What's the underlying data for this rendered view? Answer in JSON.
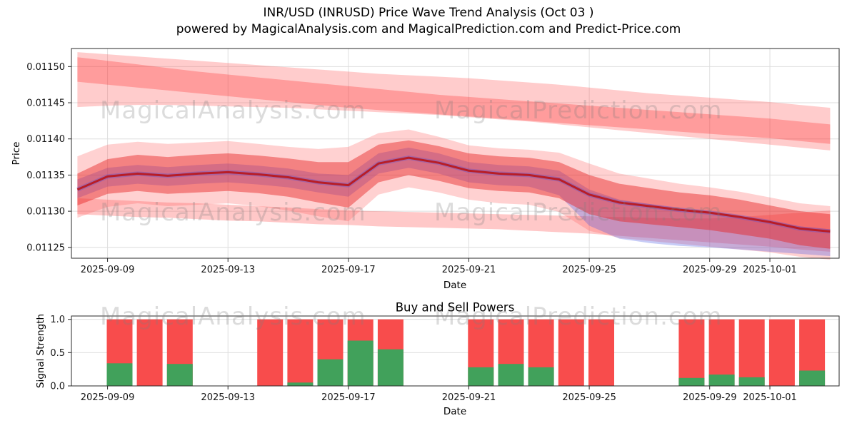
{
  "header": {
    "title": "INR/USD (INRUSD) Price Wave Trend Analysis (Oct 03 )",
    "subtitle": "powered by MagicalAnalysis.com and MagicalPrediction.com and Predict-Price.com"
  },
  "watermarks": {
    "left": "MagicalAnalysis.com",
    "right": "MagicalPrediction.com"
  },
  "chart_data": [
    {
      "ref": "price_chart"
    },
    {
      "ref": "power_chart"
    }
  ],
  "price_chart": {
    "type": "area",
    "xlabel": "Date",
    "ylabel": "Price",
    "ylim": [
      0.011235,
      0.011525
    ],
    "xlim_days": [
      -0.2,
      25.3
    ],
    "grid": true,
    "x_dates": [
      "2025-09-08",
      "2025-09-09",
      "2025-09-10",
      "2025-09-11",
      "2025-09-12",
      "2025-09-13",
      "2025-09-14",
      "2025-09-15",
      "2025-09-16",
      "2025-09-17",
      "2025-09-18",
      "2025-09-19",
      "2025-09-20",
      "2025-09-21",
      "2025-09-22",
      "2025-09-23",
      "2025-09-24",
      "2025-09-25",
      "2025-09-26",
      "2025-09-27",
      "2025-09-28",
      "2025-09-29",
      "2025-09-30",
      "2025-10-01",
      "2025-10-02",
      "2025-10-03"
    ],
    "yticks": [
      {
        "label": "0.01125",
        "value": 0.01125
      },
      {
        "label": "0.01130",
        "value": 0.0113
      },
      {
        "label": "0.01135",
        "value": 0.01135
      },
      {
        "label": "0.01140",
        "value": 0.0114
      },
      {
        "label": "0.01145",
        "value": 0.01145
      },
      {
        "label": "0.01150",
        "value": 0.0115
      }
    ],
    "xticks": [
      {
        "label": "2025-09-09",
        "day": 1
      },
      {
        "label": "2025-09-13",
        "day": 5
      },
      {
        "label": "2025-09-17",
        "day": 9
      },
      {
        "label": "2025-09-21",
        "day": 13
      },
      {
        "label": "2025-09-25",
        "day": 17
      },
      {
        "label": "2025-09-29",
        "day": 21
      },
      {
        "label": "2025-10-01",
        "day": 23
      }
    ],
    "central_line": {
      "color": "#bb1111",
      "glow_color": "#5050dd",
      "values": [
        0.01133,
        0.011348,
        0.011352,
        0.011349,
        0.011352,
        0.011354,
        0.011351,
        0.011347,
        0.01134,
        0.011336,
        0.011366,
        0.011374,
        0.011367,
        0.011356,
        0.011352,
        0.01135,
        0.011344,
        0.011323,
        0.011312,
        0.011307,
        0.011302,
        0.011298,
        0.011292,
        0.011285,
        0.011276,
        0.011272
      ]
    },
    "bands": [
      {
        "name": "upper-fan-light",
        "color": "#ff5555",
        "alpha": 0.3,
        "high": [
          0.01152,
          0.011517,
          0.011514,
          0.011511,
          0.011508,
          0.011505,
          0.011502,
          0.011499,
          0.011496,
          0.011493,
          0.01149,
          0.011488,
          0.011486,
          0.011484,
          0.011481,
          0.011478,
          0.011475,
          0.011471,
          0.011467,
          0.011463,
          0.01146,
          0.011457,
          0.011454,
          0.011451,
          0.011447,
          0.011443
        ],
        "low": [
          0.011444,
          0.011446,
          0.011447,
          0.011447,
          0.011446,
          0.011445,
          0.011444,
          0.011443,
          0.011441,
          0.011439,
          0.011437,
          0.011435,
          0.011433,
          0.01143,
          0.011427,
          0.011424,
          0.01142,
          0.011416,
          0.011412,
          0.011408,
          0.011404,
          0.0114,
          0.011396,
          0.011392,
          0.011388,
          0.011384
        ]
      },
      {
        "name": "upper-fan-dark",
        "color": "#ff2222",
        "alpha": 0.28,
        "high": [
          0.011513,
          0.011508,
          0.011503,
          0.011498,
          0.011493,
          0.011489,
          0.011485,
          0.011481,
          0.011477,
          0.011473,
          0.011469,
          0.011465,
          0.011461,
          0.011458,
          0.011455,
          0.011452,
          0.011449,
          0.011446,
          0.011443,
          0.01144,
          0.011437,
          0.011434,
          0.011431,
          0.011428,
          0.011424,
          0.01142
        ],
        "low": [
          0.011479,
          0.011475,
          0.011471,
          0.011467,
          0.011463,
          0.011459,
          0.011455,
          0.011451,
          0.011447,
          0.011443,
          0.01144,
          0.011437,
          0.011434,
          0.011431,
          0.011428,
          0.011425,
          0.011422,
          0.011419,
          0.011416,
          0.011413,
          0.01141,
          0.011407,
          0.011404,
          0.011401,
          0.011397,
          0.011393
        ]
      },
      {
        "name": "lower-fan",
        "color": "#ff5555",
        "alpha": 0.32,
        "high": [
          0.011318,
          0.011316,
          0.011314,
          0.011312,
          0.011311,
          0.011309,
          0.011307,
          0.011305,
          0.011303,
          0.011301,
          0.0113,
          0.011299,
          0.011298,
          0.011297,
          0.011296,
          0.011295,
          0.011294,
          0.011293,
          0.011292,
          0.011291,
          0.01129,
          0.01129,
          0.011292,
          0.011295,
          0.011298,
          0.011301
        ],
        "low": [
          0.011296,
          0.011294,
          0.011292,
          0.011291,
          0.011289,
          0.011287,
          0.011286,
          0.011284,
          0.011282,
          0.011281,
          0.011279,
          0.011278,
          0.011277,
          0.011276,
          0.011275,
          0.011273,
          0.011271,
          0.011269,
          0.011266,
          0.011263,
          0.01126,
          0.011257,
          0.011254,
          0.011251,
          0.011247,
          0.011244
        ]
      },
      {
        "name": "central-halo",
        "color": "#ff6666",
        "alpha": 0.3,
        "high": [
          0.011376,
          0.011392,
          0.011396,
          0.011393,
          0.011395,
          0.011397,
          0.011393,
          0.011389,
          0.011386,
          0.011389,
          0.011408,
          0.011413,
          0.011403,
          0.011391,
          0.011387,
          0.011385,
          0.011381,
          0.011366,
          0.011352,
          0.011345,
          0.011338,
          0.011333,
          0.011327,
          0.011319,
          0.011311,
          0.011307
        ],
        "low": [
          0.011291,
          0.011306,
          0.011311,
          0.011307,
          0.011309,
          0.011311,
          0.011307,
          0.011301,
          0.011293,
          0.011286,
          0.011323,
          0.011333,
          0.011326,
          0.011316,
          0.011311,
          0.011309,
          0.011299,
          0.011273,
          0.011263,
          0.011259,
          0.011255,
          0.011251,
          0.011247,
          0.011243,
          0.011237,
          0.011233
        ]
      },
      {
        "name": "central-blue",
        "color": "#4455e6",
        "alpha": 0.3,
        "high": [
          0.011344,
          0.01136,
          0.011364,
          0.011361,
          0.011364,
          0.011366,
          0.011363,
          0.011359,
          0.011352,
          0.01135,
          0.01138,
          0.011388,
          0.01138,
          0.011368,
          0.011364,
          0.011362,
          0.011356,
          0.01133,
          0.011316,
          0.01131,
          0.011304,
          0.0113,
          0.011294,
          0.011287,
          0.011279,
          0.011275
        ],
        "low": [
          0.011318,
          0.011334,
          0.011338,
          0.011335,
          0.011338,
          0.01134,
          0.011337,
          0.011333,
          0.011326,
          0.01132,
          0.011352,
          0.01136,
          0.011352,
          0.01134,
          0.011336,
          0.011334,
          0.011322,
          0.01128,
          0.011262,
          0.011256,
          0.011252,
          0.01125,
          0.011247,
          0.011244,
          0.011241,
          0.011238
        ]
      },
      {
        "name": "central-red",
        "color": "#e62222",
        "alpha": 0.45,
        "high": [
          0.011352,
          0.011372,
          0.011378,
          0.011375,
          0.011378,
          0.01138,
          0.011377,
          0.011373,
          0.011368,
          0.011368,
          0.011392,
          0.011398,
          0.01139,
          0.01138,
          0.011376,
          0.011374,
          0.011368,
          0.01135,
          0.011338,
          0.011332,
          0.011326,
          0.011322,
          0.011316,
          0.011308,
          0.0113,
          0.011296
        ],
        "low": [
          0.011308,
          0.011324,
          0.011328,
          0.011324,
          0.011326,
          0.011328,
          0.011325,
          0.01132,
          0.011312,
          0.011305,
          0.01134,
          0.01135,
          0.011342,
          0.011332,
          0.011328,
          0.011326,
          0.011318,
          0.011296,
          0.011286,
          0.011282,
          0.011278,
          0.011274,
          0.011268,
          0.011262,
          0.011253,
          0.011248
        ]
      }
    ]
  },
  "power_chart": {
    "type": "bar",
    "title": "Buy and Sell Powers",
    "xlabel": "Date",
    "ylabel": "Signal Strength",
    "ylim": [
      0,
      1.05
    ],
    "grid": true,
    "yticks": [
      {
        "label": "0.0",
        "value": 0.0
      },
      {
        "label": "0.5",
        "value": 0.5
      },
      {
        "label": "1.0",
        "value": 1.0
      }
    ],
    "xticks": [
      {
        "label": "2025-09-09",
        "day": 1
      },
      {
        "label": "2025-09-13",
        "day": 5
      },
      {
        "label": "2025-09-17",
        "day": 9
      },
      {
        "label": "2025-09-21",
        "day": 13
      },
      {
        "label": "2025-09-25",
        "day": 17
      },
      {
        "label": "2025-09-29",
        "day": 21
      },
      {
        "label": "2025-10-01",
        "day": 23
      }
    ],
    "colors": {
      "sell": "#f84c4c",
      "buy": "#41a15b"
    },
    "bars": [
      {
        "date": "2025-09-09",
        "sell": 1.0,
        "buy": 0.34
      },
      {
        "date": "2025-09-10",
        "sell": 1.0,
        "buy": 0.0
      },
      {
        "date": "2025-09-11",
        "sell": 1.0,
        "buy": 0.33
      },
      {
        "date": "2025-09-14",
        "sell": 1.0,
        "buy": 0.0
      },
      {
        "date": "2025-09-15",
        "sell": 1.0,
        "buy": 0.05
      },
      {
        "date": "2025-09-16",
        "sell": 1.0,
        "buy": 0.4
      },
      {
        "date": "2025-09-17",
        "sell": 1.0,
        "buy": 0.68
      },
      {
        "date": "2025-09-18",
        "sell": 1.0,
        "buy": 0.55
      },
      {
        "date": "2025-09-21",
        "sell": 1.0,
        "buy": 0.28
      },
      {
        "date": "2025-09-22",
        "sell": 1.0,
        "buy": 0.33
      },
      {
        "date": "2025-09-23",
        "sell": 1.0,
        "buy": 0.28
      },
      {
        "date": "2025-09-24",
        "sell": 1.0,
        "buy": 0.0
      },
      {
        "date": "2025-09-25",
        "sell": 1.0,
        "buy": 0.0
      },
      {
        "date": "2025-09-28",
        "sell": 1.0,
        "buy": 0.12
      },
      {
        "date": "2025-09-29",
        "sell": 1.0,
        "buy": 0.17
      },
      {
        "date": "2025-09-30",
        "sell": 1.0,
        "buy": 0.13
      },
      {
        "date": "2025-10-01",
        "sell": 1.0,
        "buy": 0.0
      },
      {
        "date": "2025-10-02",
        "sell": 1.0,
        "buy": 0.23
      }
    ]
  }
}
